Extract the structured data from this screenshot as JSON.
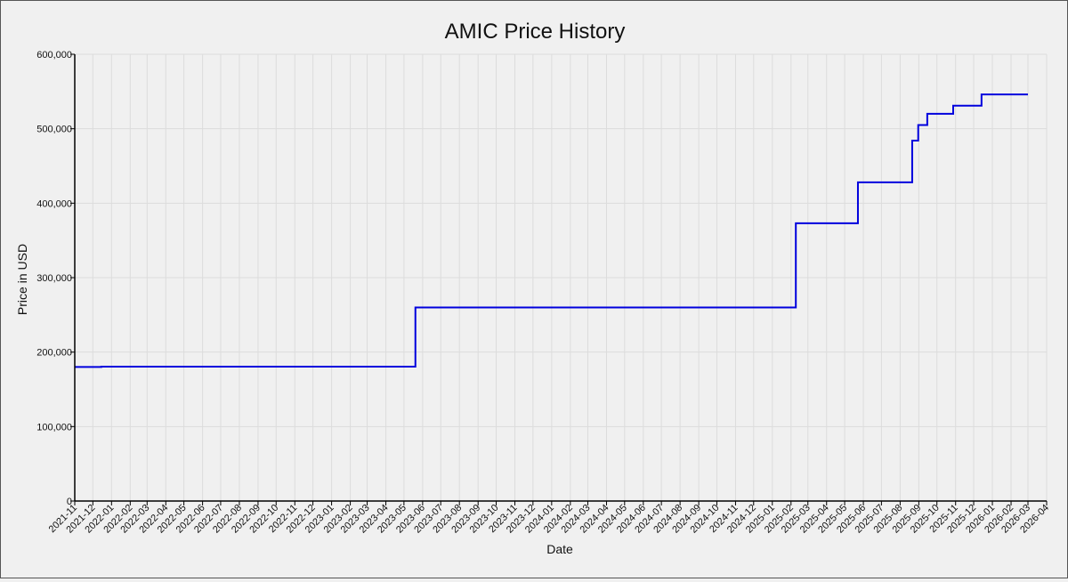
{
  "chart_data": {
    "type": "line",
    "title": "AMIC Price History",
    "xlabel": "Date",
    "ylabel": "Price in USD",
    "xlim": [
      "2021-11-01",
      "2026-04-01"
    ],
    "ylim": [
      0,
      600000
    ],
    "y_ticks": [
      0,
      100000,
      200000,
      300000,
      400000,
      500000,
      600000
    ],
    "y_tick_labels": [
      "0",
      "100,000",
      "200,000",
      "300,000",
      "400,000",
      "500,000",
      "600,000"
    ],
    "x_ticks": [
      "2021-11",
      "2021-12",
      "2022-01",
      "2022-02",
      "2022-03",
      "2022-04",
      "2022-05",
      "2022-06",
      "2022-07",
      "2022-08",
      "2022-09",
      "2022-10",
      "2022-11",
      "2022-12",
      "2023-01",
      "2023-02",
      "2023-03",
      "2023-04",
      "2023-05",
      "2023-06",
      "2023-07",
      "2023-08",
      "2023-09",
      "2023-10",
      "2023-11",
      "2023-12",
      "2024-01",
      "2024-02",
      "2024-03",
      "2024-04",
      "2024-05",
      "2024-06",
      "2024-07",
      "2024-08",
      "2024-09",
      "2024-10",
      "2024-11",
      "2024-12",
      "2025-01",
      "2025-02",
      "2025-03",
      "2025-04",
      "2025-05",
      "2025-06",
      "2025-07",
      "2025-08",
      "2025-09",
      "2025-10",
      "2025-11",
      "2025-12",
      "2026-01",
      "2026-02",
      "2026-03",
      "2026-04"
    ],
    "grid": true,
    "line_style": "step-after",
    "series": [
      {
        "color": "#0000dd",
        "x": [
          "2021-11-01",
          "2021-12-15",
          "2023-05-20",
          "2025-02-09",
          "2025-05-23",
          "2025-08-21",
          "2025-08-31",
          "2025-09-15",
          "2025-10-28",
          "2025-12-14",
          "2026-03-01"
        ],
        "y": [
          180000,
          180500,
          260000,
          373000,
          428000,
          484000,
          505000,
          520000,
          531000,
          546000,
          546000
        ]
      }
    ]
  }
}
